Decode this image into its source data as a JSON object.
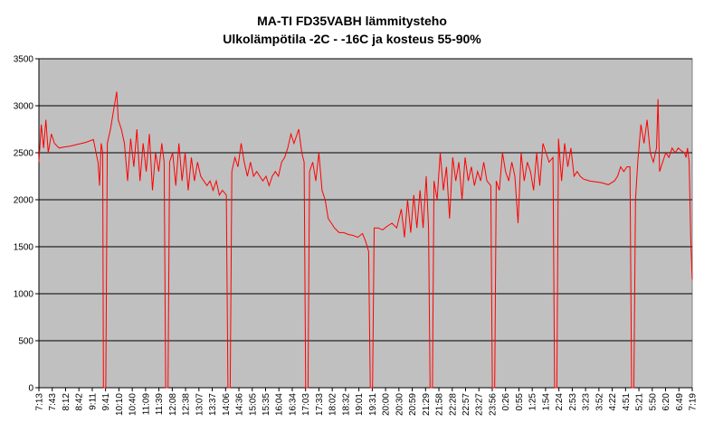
{
  "chart_data": {
    "type": "line",
    "title": "MA-TI FD35VABH lämmitysteho",
    "subtitle": "Ulkolämpötila  -2C - -16C ja kosteus 55-90%",
    "ylim": [
      0,
      3500
    ],
    "yticks": [
      0,
      500,
      1000,
      1500,
      2000,
      2500,
      3000,
      3500
    ],
    "grid": true,
    "plot_background": "#c0c0c0",
    "series_color": "#ff0000",
    "xtick_labels": [
      "7:13",
      "7:43",
      "8:12",
      "8:42",
      "9:11",
      "9:41",
      "10:10",
      "10:40",
      "11:09",
      "11:39",
      "12:08",
      "12:38",
      "13:07",
      "13:37",
      "14:06",
      "14:36",
      "15:05",
      "15:35",
      "16:04",
      "16:34",
      "17:03",
      "17:33",
      "18:02",
      "18:32",
      "19:01",
      "19:31",
      "20:00",
      "20:30",
      "20:59",
      "21:29",
      "21:58",
      "22:28",
      "22:57",
      "23:27",
      "23:56",
      "0:26",
      "0:55",
      "1:25",
      "1:54",
      "2:24",
      "2:53",
      "3:23",
      "3:52",
      "4:22",
      "4:51",
      "5:21",
      "5:50",
      "6:20",
      "6:49",
      "7:19"
    ],
    "series": [
      {
        "values": [
          [
            0,
            2400
          ],
          [
            0.15,
            2800
          ],
          [
            0.3,
            2550
          ],
          [
            0.45,
            2850
          ],
          [
            0.6,
            2500
          ],
          [
            0.8,
            2700
          ],
          [
            1.0,
            2600
          ],
          [
            1.3,
            2550
          ],
          [
            1.6,
            2560
          ],
          [
            2,
            2570
          ],
          [
            2.5,
            2590
          ],
          [
            3,
            2610
          ],
          [
            3.5,
            2640
          ],
          [
            3.8,
            2400
          ],
          [
            3.9,
            2150
          ],
          [
            4.0,
            2600
          ],
          [
            4.1,
            2500
          ],
          [
            4.15,
            0
          ],
          [
            4.3,
            0
          ],
          [
            4.4,
            2600
          ],
          [
            4.6,
            2750
          ],
          [
            4.8,
            2950
          ],
          [
            5.0,
            3150
          ],
          [
            5.1,
            2850
          ],
          [
            5.3,
            2750
          ],
          [
            5.5,
            2600
          ],
          [
            5.7,
            2200
          ],
          [
            5.9,
            2650
          ],
          [
            6.1,
            2350
          ],
          [
            6.3,
            2750
          ],
          [
            6.5,
            2200
          ],
          [
            6.7,
            2600
          ],
          [
            6.9,
            2300
          ],
          [
            7.1,
            2700
          ],
          [
            7.3,
            2100
          ],
          [
            7.5,
            2500
          ],
          [
            7.7,
            2300
          ],
          [
            7.9,
            2600
          ],
          [
            8.05,
            2400
          ],
          [
            8.15,
            0
          ],
          [
            8.3,
            0
          ],
          [
            8.4,
            2400
          ],
          [
            8.6,
            2500
          ],
          [
            8.8,
            2150
          ],
          [
            9.0,
            2600
          ],
          [
            9.2,
            2200
          ],
          [
            9.4,
            2500
          ],
          [
            9.6,
            2100
          ],
          [
            9.8,
            2450
          ],
          [
            10.0,
            2200
          ],
          [
            10.2,
            2400
          ],
          [
            10.4,
            2250
          ],
          [
            10.6,
            2200
          ],
          [
            10.8,
            2150
          ],
          [
            11.0,
            2200
          ],
          [
            11.2,
            2100
          ],
          [
            11.4,
            2200
          ],
          [
            11.6,
            2050
          ],
          [
            11.8,
            2100
          ],
          [
            12.05,
            2050
          ],
          [
            12.15,
            0
          ],
          [
            12.3,
            0
          ],
          [
            12.4,
            2300
          ],
          [
            12.6,
            2450
          ],
          [
            12.8,
            2350
          ],
          [
            13.0,
            2600
          ],
          [
            13.2,
            2400
          ],
          [
            13.4,
            2250
          ],
          [
            13.6,
            2400
          ],
          [
            13.8,
            2250
          ],
          [
            14.0,
            2300
          ],
          [
            14.2,
            2250
          ],
          [
            14.4,
            2200
          ],
          [
            14.6,
            2250
          ],
          [
            14.8,
            2150
          ],
          [
            15.0,
            2250
          ],
          [
            15.2,
            2300
          ],
          [
            15.4,
            2250
          ],
          [
            15.6,
            2400
          ],
          [
            15.8,
            2450
          ],
          [
            16.0,
            2550
          ],
          [
            16.2,
            2700
          ],
          [
            16.4,
            2600
          ],
          [
            16.7,
            2750
          ],
          [
            16.9,
            2500
          ],
          [
            17.05,
            2400
          ],
          [
            17.15,
            0
          ],
          [
            17.3,
            0
          ],
          [
            17.4,
            2300
          ],
          [
            17.6,
            2400
          ],
          [
            17.8,
            2200
          ],
          [
            18.0,
            2500
          ],
          [
            18.2,
            2100
          ],
          [
            18.4,
            2000
          ],
          [
            18.6,
            1800
          ],
          [
            18.8,
            1750
          ],
          [
            19.0,
            1700
          ],
          [
            19.3,
            1650
          ],
          [
            19.6,
            1650
          ],
          [
            19.9,
            1630
          ],
          [
            20.2,
            1620
          ],
          [
            20.5,
            1600
          ],
          [
            20.8,
            1640
          ],
          [
            21.0,
            1560
          ],
          [
            21.2,
            1450
          ],
          [
            21.3,
            0
          ],
          [
            21.45,
            0
          ],
          [
            21.55,
            1700
          ],
          [
            21.8,
            1700
          ],
          [
            22.1,
            1680
          ],
          [
            22.4,
            1720
          ],
          [
            22.7,
            1750
          ],
          [
            23.0,
            1700
          ],
          [
            23.3,
            1900
          ],
          [
            23.5,
            1600
          ],
          [
            23.7,
            2000
          ],
          [
            23.9,
            1650
          ],
          [
            24.1,
            2050
          ],
          [
            24.3,
            1700
          ],
          [
            24.5,
            2100
          ],
          [
            24.7,
            1700
          ],
          [
            24.9,
            2250
          ],
          [
            25.05,
            1700
          ],
          [
            25.15,
            0
          ],
          [
            25.3,
            0
          ],
          [
            25.4,
            2200
          ],
          [
            25.6,
            2000
          ],
          [
            25.8,
            2500
          ],
          [
            26.0,
            2100
          ],
          [
            26.2,
            2350
          ],
          [
            26.4,
            1800
          ],
          [
            26.6,
            2450
          ],
          [
            26.8,
            2200
          ],
          [
            27.0,
            2400
          ],
          [
            27.2,
            2000
          ],
          [
            27.4,
            2450
          ],
          [
            27.6,
            2200
          ],
          [
            27.8,
            2350
          ],
          [
            28.0,
            2150
          ],
          [
            28.2,
            2300
          ],
          [
            28.4,
            2200
          ],
          [
            28.6,
            2400
          ],
          [
            28.8,
            2200
          ],
          [
            29.05,
            2150
          ],
          [
            29.15,
            0
          ],
          [
            29.3,
            0
          ],
          [
            29.4,
            2200
          ],
          [
            29.6,
            2100
          ],
          [
            29.8,
            2500
          ],
          [
            30.0,
            2300
          ],
          [
            30.2,
            2200
          ],
          [
            30.4,
            2400
          ],
          [
            30.6,
            2250
          ],
          [
            30.8,
            1750
          ],
          [
            31.0,
            2500
          ],
          [
            31.2,
            2200
          ],
          [
            31.4,
            2400
          ],
          [
            31.6,
            2300
          ],
          [
            31.8,
            2100
          ],
          [
            32.0,
            2500
          ],
          [
            32.2,
            2150
          ],
          [
            32.4,
            2600
          ],
          [
            32.6,
            2500
          ],
          [
            32.8,
            2400
          ],
          [
            33.05,
            2450
          ],
          [
            33.15,
            0
          ],
          [
            33.3,
            0
          ],
          [
            33.4,
            2650
          ],
          [
            33.6,
            2200
          ],
          [
            33.8,
            2600
          ],
          [
            34.0,
            2350
          ],
          [
            34.2,
            2550
          ],
          [
            34.4,
            2250
          ],
          [
            34.6,
            2300
          ],
          [
            34.8,
            2250
          ],
          [
            35.0,
            2220
          ],
          [
            35.4,
            2200
          ],
          [
            35.8,
            2190
          ],
          [
            36.2,
            2180
          ],
          [
            36.6,
            2160
          ],
          [
            37.0,
            2200
          ],
          [
            37.2,
            2250
          ],
          [
            37.4,
            2350
          ],
          [
            37.6,
            2300
          ],
          [
            37.8,
            2350
          ],
          [
            38.0,
            2350
          ],
          [
            38.1,
            0
          ],
          [
            38.25,
            0
          ],
          [
            38.35,
            2000
          ],
          [
            38.5,
            2400
          ],
          [
            38.7,
            2800
          ],
          [
            38.9,
            2600
          ],
          [
            39.1,
            2850
          ],
          [
            39.3,
            2500
          ],
          [
            39.5,
            2400
          ],
          [
            39.7,
            2550
          ],
          [
            39.8,
            3070
          ],
          [
            39.9,
            2300
          ],
          [
            40.1,
            2400
          ],
          [
            40.3,
            2500
          ],
          [
            40.5,
            2450
          ],
          [
            40.7,
            2550
          ],
          [
            40.9,
            2500
          ],
          [
            41.1,
            2550
          ],
          [
            41.3,
            2520
          ],
          [
            41.5,
            2500
          ],
          [
            41.6,
            2450
          ],
          [
            41.7,
            2550
          ],
          [
            41.8,
            2400
          ],
          [
            41.9,
            1600
          ],
          [
            42,
            1150
          ]
        ]
      }
    ]
  }
}
